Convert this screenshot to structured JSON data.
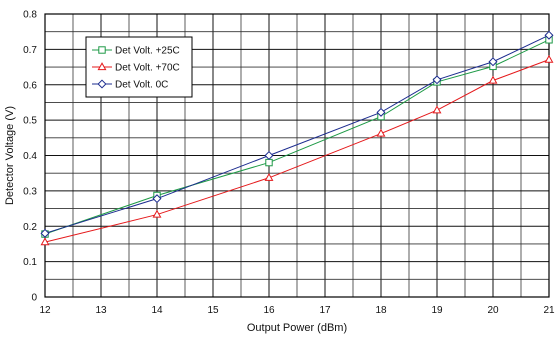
{
  "chart_data": {
    "type": "line",
    "title": "",
    "xlabel": "Output Power (dBm)",
    "ylabel": "Detector Voltage (V)",
    "xlim": [
      12,
      21
    ],
    "ylim": [
      0,
      0.8
    ],
    "x_ticks": [
      "12",
      "13",
      "14",
      "15",
      "16",
      "17",
      "18",
      "19",
      "20",
      "21"
    ],
    "y_ticks": [
      "0",
      "0.1",
      "0.2",
      "0.3",
      "0.4",
      "0.5",
      "0.6",
      "0.7",
      "0.8"
    ],
    "grid": true,
    "legend_position": "top-left",
    "series": [
      {
        "name": "Det Volt. +25C",
        "color": "#1e9a46",
        "marker": "square",
        "x": [
          12,
          14,
          16,
          18,
          19,
          20,
          21
        ],
        "y": [
          0.178,
          0.287,
          0.38,
          0.51,
          0.608,
          0.652,
          0.727
        ]
      },
      {
        "name": "Det Volt. +70C",
        "color": "#e5191b",
        "marker": "triangle",
        "x": [
          12,
          14,
          16,
          18,
          19,
          20,
          21
        ],
        "y": [
          0.155,
          0.233,
          0.337,
          0.462,
          0.528,
          0.612,
          0.671
        ]
      },
      {
        "name": "Det Volt. 0C",
        "color": "#1c2c8f",
        "marker": "diamond",
        "x": [
          12,
          14,
          16,
          18,
          19,
          20,
          21
        ],
        "y": [
          0.18,
          0.278,
          0.4,
          0.522,
          0.614,
          0.665,
          0.74
        ]
      }
    ]
  }
}
